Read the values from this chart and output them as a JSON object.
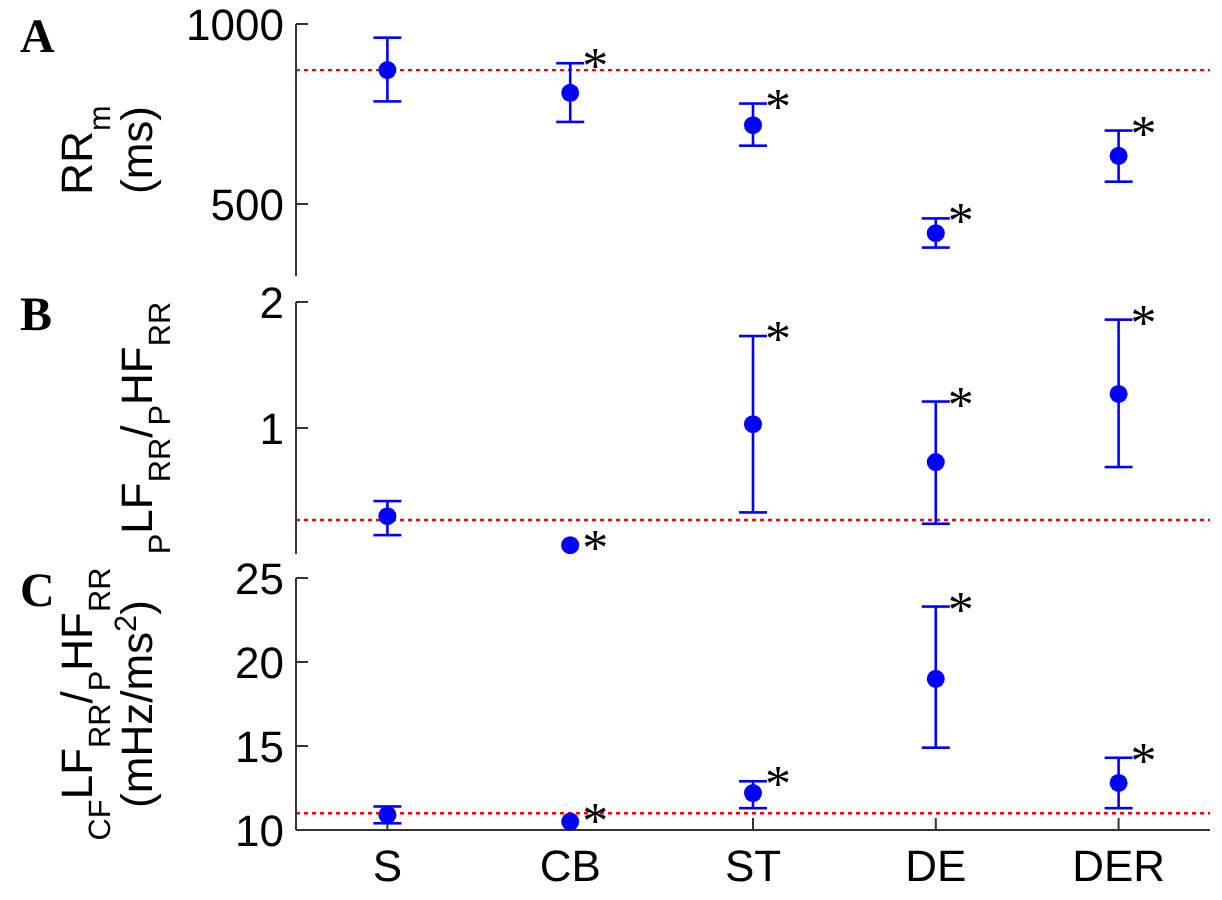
{
  "chart_data": [
    {
      "type": "scatter",
      "title": "A",
      "ylabel": "RR$_{m}$\n(ms)",
      "categories": [
        "S",
        "CB",
        "ST",
        "DE",
        "DER"
      ],
      "tick_labels": "y",
      "marker": "circle",
      "series": [
        {
          "color": "#0000ff",
          "values": [
            872,
            809,
            719,
            419,
            634
          ],
          "errors": [
            [
              785,
              962
            ],
            [
              728,
              891
            ],
            [
              662,
              779
            ],
            [
              379,
              460
            ],
            [
              562,
              704
            ]
          ]
        }
      ],
      "ylim": [
        300,
        1000
      ],
      "yticks": [
        500,
        1000
      ],
      "grid": false,
      "legend": false,
      "ref_lines": [
        {
          "axis": "y",
          "value": 872,
          "color": "#ff0000",
          "line_style": "dotted"
        }
      ],
      "annotations": [
        {
          "text": "*",
          "x": "CB",
          "y": 891
        },
        {
          "text": "*",
          "x": "ST",
          "y": 779
        },
        {
          "text": "*",
          "x": "DE",
          "y": 460
        },
        {
          "text": "*",
          "x": "DER",
          "y": 704
        }
      ]
    },
    {
      "type": "scatter",
      "title": "B",
      "ylabel": "$_{P}$LF$_{RR}$/$_{P}$HF$_{RR}$",
      "categories": [
        "S",
        "CB",
        "ST",
        "DE",
        "DER"
      ],
      "tick_labels": "y",
      "marker": "circle",
      "series": [
        {
          "color": "#0000ff",
          "values": [
            0.3,
            0.07,
            1.03,
            0.73,
            1.27
          ],
          "errors": [
            [
              0.15,
              0.42
            ],
            null,
            [
              0.33,
              1.73
            ],
            [
              0.24,
              1.21
            ],
            [
              0.69,
              1.86
            ]
          ]
        }
      ],
      "ylim": [
        0,
        2
      ],
      "yticks": [
        1,
        2
      ],
      "grid": false,
      "legend": false,
      "ref_lines": [
        {
          "axis": "y",
          "value": 0.27,
          "color": "#ff0000",
          "line_style": "dotted"
        }
      ],
      "annotations": [
        {
          "text": "*",
          "x": "CB",
          "y": 0.07
        },
        {
          "text": "*",
          "x": "ST",
          "y": 1.73
        },
        {
          "text": "*",
          "x": "DE",
          "y": 1.21
        },
        {
          "text": "*",
          "x": "DER",
          "y": 1.86
        }
      ]
    },
    {
      "type": "scatter",
      "title": "C",
      "ylabel": "$_{CF}$LF$_{RR}$/$_{P}$HF$_{RR}$\n(mHz/ms$^{2}$)",
      "categories": [
        "S",
        "CB",
        "ST",
        "DE",
        "DER"
      ],
      "marker": "circle",
      "series": [
        {
          "color": "#0000ff",
          "values": [
            10.9,
            10.5,
            12.2,
            19.0,
            12.8
          ],
          "errors": [
            [
              10.4,
              11.4
            ],
            null,
            [
              11.3,
              12.9
            ],
            [
              14.9,
              23.3
            ],
            [
              11.3,
              14.3
            ]
          ]
        }
      ],
      "ylim": [
        10,
        25
      ],
      "yticks": [
        10,
        15,
        20,
        25
      ],
      "grid": false,
      "legend": false,
      "ref_lines": [
        {
          "axis": "y",
          "value": 11.0,
          "color": "#ff0000",
          "line_style": "dotted"
        }
      ],
      "annotations": [
        {
          "text": "*",
          "x": "CB",
          "y": 10.7
        },
        {
          "text": "*",
          "x": "ST",
          "y": 12.9
        },
        {
          "text": "*",
          "x": "DE",
          "y": 23.3
        },
        {
          "text": "*",
          "x": "DER",
          "y": 14.3
        }
      ]
    }
  ]
}
